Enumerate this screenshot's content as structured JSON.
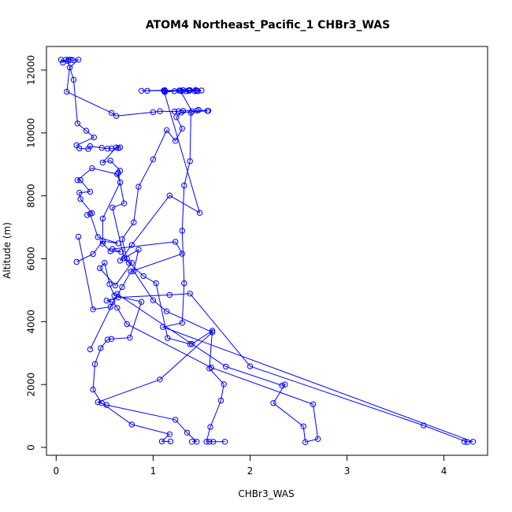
{
  "chart_data": {
    "type": "line",
    "title": "ATOM4 Northeast_Pacific_1 CHBr3_WAS",
    "xlabel": "CHBr3_WAS",
    "ylabel": "Altitude (m)",
    "xlim": [
      -0.1,
      4.45
    ],
    "ylim": [
      -250,
      12750
    ],
    "x_ticks": [
      0,
      1,
      2,
      3,
      4
    ],
    "y_ticks": [
      0,
      2000,
      4000,
      6000,
      8000,
      10000,
      12000
    ],
    "x_tick_labels": [
      "0",
      "1",
      "2",
      "3",
      "4"
    ],
    "y_tick_labels": [
      "0",
      "2000",
      "4000",
      "6000",
      "8000",
      "10000",
      "12000"
    ],
    "grid": false,
    "legend": "none",
    "line_color": "#0000ff",
    "marker": "open-circle",
    "series": [
      {
        "points": [
          [
            1.74,
            180
          ],
          [
            1.62,
            180
          ],
          [
            1.58,
            180
          ],
          [
            1.55,
            180
          ],
          [
            1.59,
            650
          ],
          [
            1.7,
            1490
          ],
          [
            1.73,
            2010
          ],
          [
            1.58,
            2510
          ],
          [
            1.61,
            3710
          ],
          [
            1.4,
            3290
          ],
          [
            1.38,
            3290
          ],
          [
            1.15,
            3480
          ],
          [
            1.03,
            5220
          ],
          [
            0.9,
            5450
          ],
          [
            0.7,
            6020
          ],
          [
            0.58,
            7630
          ],
          [
            0.7,
            7760
          ],
          [
            0.64,
            8730
          ],
          [
            0.66,
            8800
          ],
          [
            0.56,
            9120
          ],
          [
            0.48,
            9060
          ],
          [
            0.62,
            9540
          ],
          [
            0.66,
            9540
          ],
          [
            0.64,
            9520
          ],
          [
            0.57,
            9510
          ],
          [
            0.53,
            9500
          ],
          [
            0.47,
            9530
          ],
          [
            0.35,
            9580
          ],
          [
            0.33,
            9490
          ],
          [
            0.24,
            9510
          ],
          [
            0.21,
            9610
          ],
          [
            0.39,
            9860
          ],
          [
            0.31,
            10070
          ],
          [
            0.22,
            10300
          ],
          [
            0.18,
            11690
          ],
          [
            0.12,
            12290
          ],
          [
            0.05,
            12330
          ],
          [
            0.07,
            12240
          ],
          [
            0.1,
            12330
          ],
          [
            0.13,
            12330
          ],
          [
            0.15,
            12330
          ],
          [
            0.17,
            12320
          ],
          [
            0.23,
            12330
          ],
          [
            0.14,
            12080
          ],
          [
            0.11,
            11310
          ],
          [
            0.57,
            10640
          ],
          [
            0.62,
            10540
          ],
          [
            1.0,
            10660
          ],
          [
            1.07,
            10690
          ],
          [
            1.22,
            10680
          ],
          [
            1.26,
            10690
          ],
          [
            1.31,
            10700
          ],
          [
            1.45,
            10710
          ],
          [
            1.47,
            10730
          ],
          [
            1.57,
            10700
          ],
          [
            1.56,
            10700
          ],
          [
            1.29,
            10650
          ],
          [
            1.24,
            10500
          ],
          [
            1.3,
            10140
          ],
          [
            1.23,
            9750
          ],
          [
            1.14,
            10090
          ],
          [
            1.0,
            9160
          ],
          [
            0.85,
            8290
          ],
          [
            0.8,
            7160
          ],
          [
            0.68,
            6620
          ],
          [
            0.73,
            6010
          ],
          [
            0.75,
            5870
          ],
          [
            0.78,
            5870
          ],
          [
            0.61,
            5150
          ],
          [
            0.45,
            5700
          ],
          [
            0.5,
            5870
          ],
          [
            0.55,
            5190
          ],
          [
            0.6,
            4830
          ],
          [
            0.88,
            4630
          ],
          [
            0.76,
            3490
          ],
          [
            0.57,
            3450
          ],
          [
            0.53,
            3430
          ],
          [
            0.46,
            3160
          ],
          [
            0.4,
            2650
          ],
          [
            0.38,
            1840
          ],
          [
            0.47,
            1410
          ],
          [
            0.78,
            730
          ],
          [
            1.17,
            420
          ],
          [
            1.09,
            190
          ],
          [
            1.18,
            190
          ]
        ]
      },
      {
        "points": [
          [
            0.35,
            3120
          ],
          [
            0.63,
            4880
          ],
          [
            1.75,
            2570
          ],
          [
            2.33,
            1970
          ],
          [
            2.36,
            2000
          ],
          [
            2.24,
            1410
          ],
          [
            2.55,
            670
          ],
          [
            2.57,
            170
          ],
          [
            2.7,
            270
          ],
          [
            2.65,
            1370
          ],
          [
            1.6,
            2540
          ],
          [
            0.73,
            3920
          ],
          [
            0.63,
            4440
          ],
          [
            0.58,
            4630
          ],
          [
            0.52,
            4670
          ],
          [
            0.64,
            4770
          ],
          [
            1.17,
            4850
          ],
          [
            1.38,
            4890
          ],
          [
            2.0,
            2580
          ],
          [
            3.79,
            700
          ],
          [
            4.24,
            170
          ],
          [
            4.21,
            180
          ],
          [
            4.3,
            180
          ],
          [
            1.1,
            3830
          ],
          [
            1.3,
            3960
          ],
          [
            1.32,
            5220
          ],
          [
            1.3,
            6890
          ],
          [
            1.32,
            8330
          ],
          [
            1.38,
            9100
          ],
          [
            1.39,
            10640
          ],
          [
            1.4,
            10690
          ],
          [
            1.28,
            11350
          ],
          [
            1.31,
            11360
          ],
          [
            1.37,
            11340
          ],
          [
            1.45,
            11340
          ],
          [
            1.5,
            11350
          ],
          [
            1.46,
            11330
          ],
          [
            1.44,
            11370
          ],
          [
            1.37,
            11360
          ],
          [
            1.27,
            11350
          ],
          [
            1.12,
            11330
          ],
          [
            1.12,
            11300
          ],
          [
            1.22,
            11330
          ],
          [
            1.29,
            11330
          ],
          [
            1.34,
            11330
          ],
          [
            1.43,
            11330
          ],
          [
            1.38,
            11360
          ],
          [
            0.94,
            11340
          ],
          [
            0.88,
            11340
          ],
          [
            1.12,
            11360
          ],
          [
            1.11,
            11350
          ],
          [
            1.48,
            7460
          ],
          [
            1.17,
            8010
          ],
          [
            0.78,
            6440
          ],
          [
            0.66,
            5940
          ],
          [
            0.85,
            6290
          ],
          [
            0.8,
            5610
          ],
          [
            1.0,
            4680
          ],
          [
            1.14,
            4330
          ],
          [
            1.61,
            3660
          ],
          [
            1.07,
            2160
          ],
          [
            0.43,
            1440
          ],
          [
            0.52,
            1350
          ],
          [
            1.23,
            880
          ],
          [
            1.35,
            470
          ],
          [
            1.45,
            180
          ],
          [
            1.4,
            180
          ]
        ]
      },
      {
        "points": [
          [
            0.21,
            5900
          ],
          [
            0.38,
            6150
          ],
          [
            0.48,
            6560
          ],
          [
            0.64,
            6490
          ],
          [
            0.43,
            6690
          ],
          [
            0.35,
            7430
          ],
          [
            0.32,
            7390
          ],
          [
            0.37,
            7450
          ],
          [
            0.25,
            7900
          ],
          [
            0.24,
            8100
          ],
          [
            0.35,
            8130
          ],
          [
            0.25,
            8500
          ],
          [
            0.22,
            8500
          ],
          [
            0.37,
            8880
          ],
          [
            0.63,
            8690
          ],
          [
            0.66,
            8430
          ],
          [
            0.48,
            7280
          ],
          [
            0.48,
            6480
          ],
          [
            0.56,
            6240
          ],
          [
            0.67,
            6220
          ],
          [
            0.58,
            6310
          ],
          [
            1.23,
            6540
          ],
          [
            1.3,
            6160
          ],
          [
            0.77,
            5590
          ],
          [
            0.68,
            5100
          ],
          [
            0.56,
            4470
          ],
          [
            0.38,
            4390
          ],
          [
            0.23,
            6700
          ]
        ]
      }
    ]
  }
}
